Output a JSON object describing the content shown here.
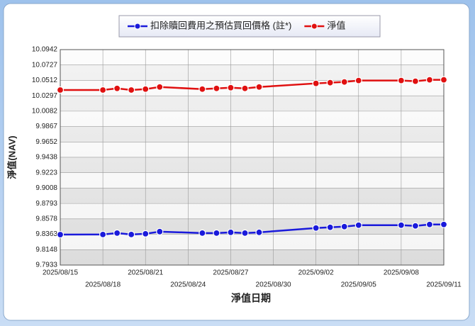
{
  "chart_data": {
    "type": "line",
    "x_label": "淨值日期",
    "y_label": "淨值(NAV)",
    "x": [
      "2025/08/15",
      "2025/08/18",
      "2025/08/19",
      "2025/08/20",
      "2025/08/21",
      "2025/08/22",
      "2025/08/25",
      "2025/08/26",
      "2025/08/27",
      "2025/08/28",
      "2025/08/29",
      "2025/09/02",
      "2025/09/03",
      "2025/09/04",
      "2025/09/05",
      "2025/09/08",
      "2025/09/09",
      "2025/09/10",
      "2025/09/11"
    ],
    "series": [
      {
        "name": "扣除贖回費用之預估買回價格 (註*)",
        "color": "#1a1adb",
        "values": [
          9.8358,
          9.836,
          9.838,
          9.836,
          9.837,
          9.84,
          9.838,
          9.838,
          9.839,
          9.838,
          9.839,
          9.845,
          9.846,
          9.847,
          9.849,
          9.849,
          9.848,
          9.85,
          9.85
        ]
      },
      {
        "name": "淨值",
        "color": "#e01010",
        "values": [
          10.0378,
          10.0378,
          10.04,
          10.0378,
          10.039,
          10.042,
          10.039,
          10.04,
          10.041,
          10.04,
          10.042,
          10.047,
          10.048,
          10.049,
          10.051,
          10.051,
          10.05,
          10.052,
          10.052
        ]
      }
    ],
    "xlim": [
      "2025/08/15",
      "2025/09/11"
    ],
    "xticks": [
      "2025/08/15",
      "2025/08/18",
      "2025/08/21",
      "2025/08/24",
      "2025/08/27",
      "2025/08/30",
      "2025/09/02",
      "2025/09/05",
      "2025/09/08",
      "2025/09/11"
    ],
    "ylim": [
      9.7933,
      10.0942
    ],
    "yticks": [
      9.7933,
      9.8148,
      9.8363,
      9.8578,
      9.8793,
      9.9008,
      9.9223,
      9.9438,
      9.9652,
      9.9867,
      10.0082,
      10.0297,
      10.0512,
      10.0727,
      10.0942
    ],
    "grid": true,
    "legend": "top"
  }
}
